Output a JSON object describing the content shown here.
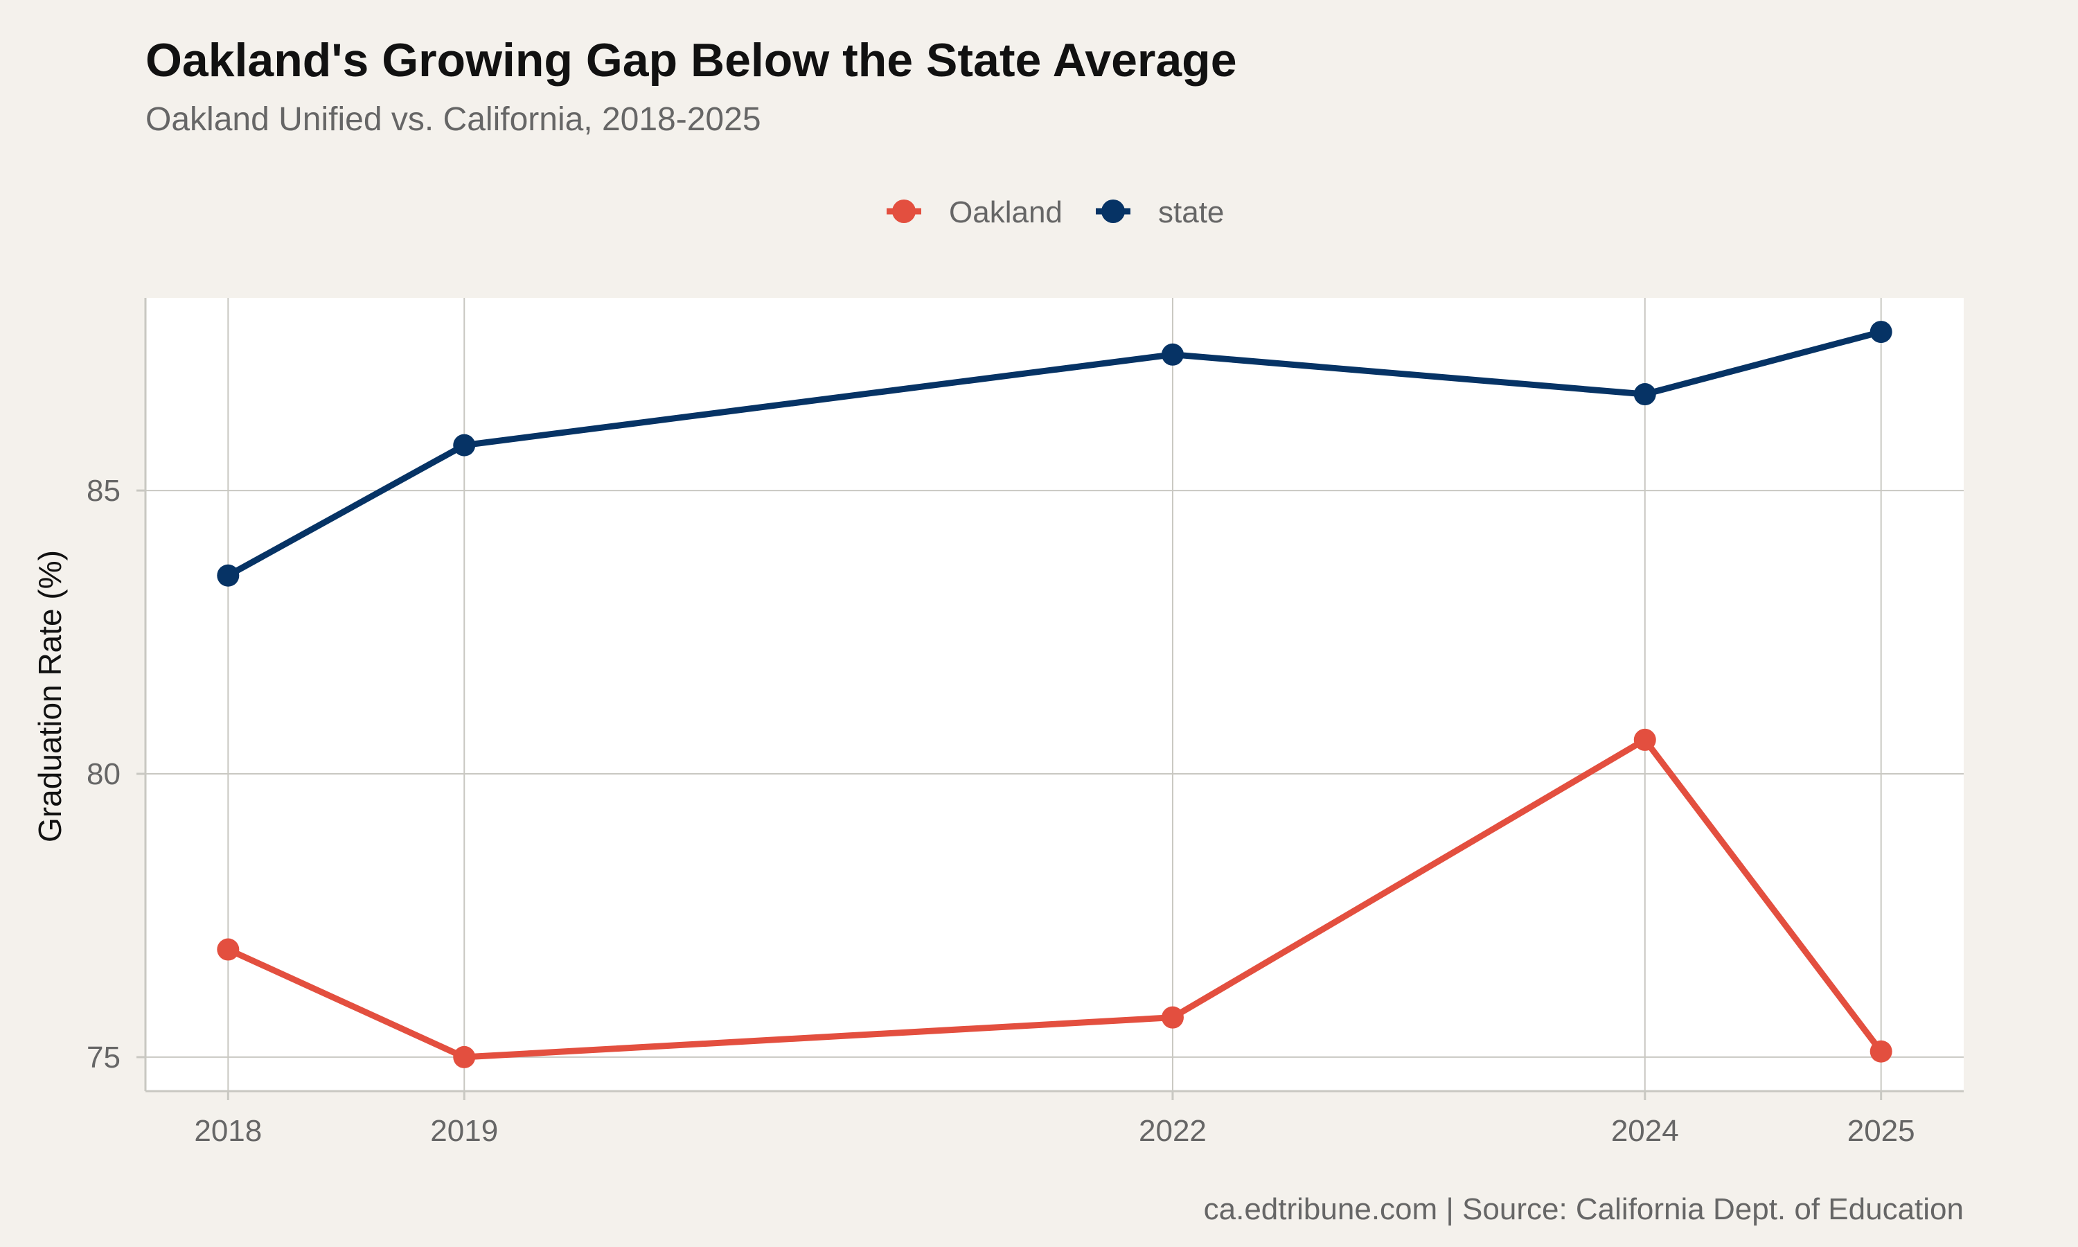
{
  "chart_data": {
    "type": "line",
    "title": "Oakland's Growing Gap Below the State Average",
    "subtitle": "Oakland Unified vs. California, 2018-2025",
    "caption": "ca.edtribune.com | Source: California Dept. of Education",
    "xlabel": "",
    "ylabel": "Graduation Rate (%)",
    "x": [
      2018,
      2019,
      2022,
      2024,
      2025
    ],
    "xlim": [
      2017.65,
      2025.35
    ],
    "ylim": [
      74.4,
      88.4
    ],
    "yticks": [
      75,
      80,
      85
    ],
    "grid": true,
    "legend": {
      "position": "top-center",
      "entries": [
        "Oakland",
        "state"
      ]
    },
    "series": [
      {
        "name": "Oakland",
        "color": "#e34f3f",
        "values": [
          76.9,
          75.0,
          75.7,
          80.6,
          75.1
        ]
      },
      {
        "name": "state",
        "color": "#063365",
        "values": [
          83.5,
          85.8,
          87.4,
          86.7,
          87.8
        ]
      }
    ],
    "colors": {
      "page_background": "#f4f1ec",
      "panel_background": "#ffffff",
      "grid": "#c9c8c2"
    }
  }
}
